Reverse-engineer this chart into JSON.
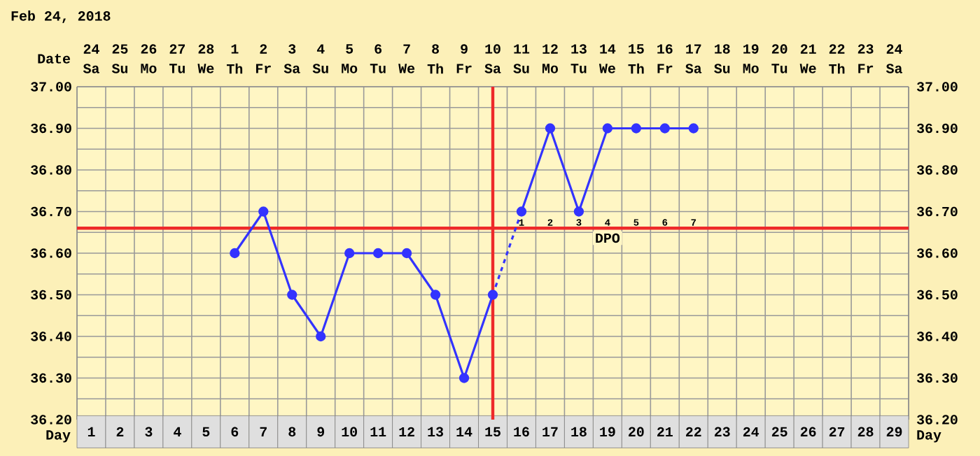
{
  "chart_data": {
    "type": "line",
    "title": "Feb 24, 2018",
    "xlabel": "Day",
    "categories": [
      "1",
      "2",
      "3",
      "4",
      "5",
      "6",
      "7",
      "8",
      "9",
      "10",
      "11",
      "12",
      "13",
      "14",
      "15",
      "16",
      "17",
      "18",
      "19",
      "20",
      "21",
      "22",
      "23",
      "24",
      "25",
      "26",
      "27",
      "28",
      "29"
    ],
    "series": [
      {
        "color": "#3333ff",
        "values": [
          null,
          null,
          null,
          null,
          null,
          36.6,
          36.7,
          36.5,
          36.4,
          36.6,
          36.6,
          36.6,
          36.5,
          36.3,
          36.5,
          null,
          null,
          null,
          null,
          null,
          null,
          null,
          null,
          null,
          null,
          null,
          null,
          null,
          null
        ]
      },
      {
        "color": "#3333ff",
        "line_style": "dashed",
        "marker": "none",
        "values": [
          null,
          null,
          null,
          null,
          null,
          null,
          null,
          null,
          null,
          null,
          null,
          null,
          null,
          null,
          36.5,
          36.7,
          null,
          null,
          null,
          null,
          null,
          null,
          null,
          null,
          null,
          null,
          null,
          null,
          null
        ]
      },
      {
        "color": "#3333ff",
        "values": [
          null,
          null,
          null,
          null,
          null,
          null,
          null,
          null,
          null,
          null,
          null,
          null,
          null,
          null,
          null,
          36.7,
          36.9,
          36.7,
          36.9,
          36.9,
          36.9,
          36.9,
          null,
          null,
          null,
          null,
          null,
          null,
          null
        ]
      }
    ],
    "marker": "circle",
    "line_style": "solid",
    "grid": true,
    "ylim": [
      36.2,
      37.0
    ],
    "yticks": [
      {
        "value": 36.2,
        "label": "36.20"
      },
      {
        "value": 36.25,
        "label": null
      },
      {
        "value": 36.3,
        "label": "36.30"
      },
      {
        "value": 36.35,
        "label": null
      },
      {
        "value": 36.4,
        "label": "36.40"
      },
      {
        "value": 36.45,
        "label": null
      },
      {
        "value": 36.5,
        "label": "36.50"
      },
      {
        "value": 36.55,
        "label": null
      },
      {
        "value": 36.6,
        "label": "36.60"
      },
      {
        "value": 36.65,
        "label": null
      },
      {
        "value": 36.7,
        "label": "36.70"
      },
      {
        "value": 36.75,
        "label": null
      },
      {
        "value": 36.8,
        "label": "36.80"
      },
      {
        "value": 36.85,
        "label": null
      },
      {
        "value": 36.9,
        "label": "36.90"
      },
      {
        "value": 36.95,
        "label": null
      },
      {
        "value": 37.0,
        "label": "37.00"
      }
    ],
    "y2lim": [
      36.2,
      37.0
    ],
    "y2ticks": [
      {
        "value": 36.2,
        "label": "36.20"
      },
      {
        "value": 36.25,
        "label": null
      },
      {
        "value": 36.3,
        "label": "36.30"
      },
      {
        "value": 36.35,
        "label": null
      },
      {
        "value": 36.4,
        "label": "36.40"
      },
      {
        "value": 36.45,
        "label": null
      },
      {
        "value": 36.5,
        "label": "36.50"
      },
      {
        "value": 36.55,
        "label": null
      },
      {
        "value": 36.6,
        "label": "36.60"
      },
      {
        "value": 36.65,
        "label": null
      },
      {
        "value": 36.7,
        "label": "36.70"
      },
      {
        "value": 36.75,
        "label": null
      },
      {
        "value": 36.8,
        "label": "36.80"
      },
      {
        "value": 36.85,
        "label": null
      },
      {
        "value": 36.9,
        "label": "36.90"
      },
      {
        "value": 36.95,
        "label": null
      },
      {
        "value": 37.0,
        "label": "37.00"
      }
    ],
    "ref_lines": [
      {
        "axis": "y",
        "value": 36.66,
        "color": "#ee2a2a"
      },
      {
        "axis": "x",
        "value": "15",
        "color": "#ee2a2a"
      }
    ],
    "annotations": [
      "Date",
      "24",
      "Sa",
      "25",
      "Su",
      "26",
      "Mo",
      "27",
      "Tu",
      "28",
      "We",
      "1",
      "Th",
      "2",
      "Fr",
      "3",
      "Sa",
      "4",
      "Su",
      "5",
      "Mo",
      "6",
      "Tu",
      "7",
      "We",
      "8",
      "Th",
      "9",
      "Fr",
      "10",
      "Sa",
      "11",
      "Su",
      "12",
      "Mo",
      "13",
      "Tu",
      "14",
      "We",
      "15",
      "Th",
      "16",
      "Fr",
      "17",
      "Sa",
      "18",
      "Su",
      "19",
      "Mo",
      "20",
      "Tu",
      "21",
      "We",
      "22",
      "Th",
      "23",
      "Fr",
      "24",
      "Sa",
      "1",
      "2",
      "3",
      "4",
      "5",
      "6",
      "7",
      "DPO",
      "Day"
    ]
  }
}
